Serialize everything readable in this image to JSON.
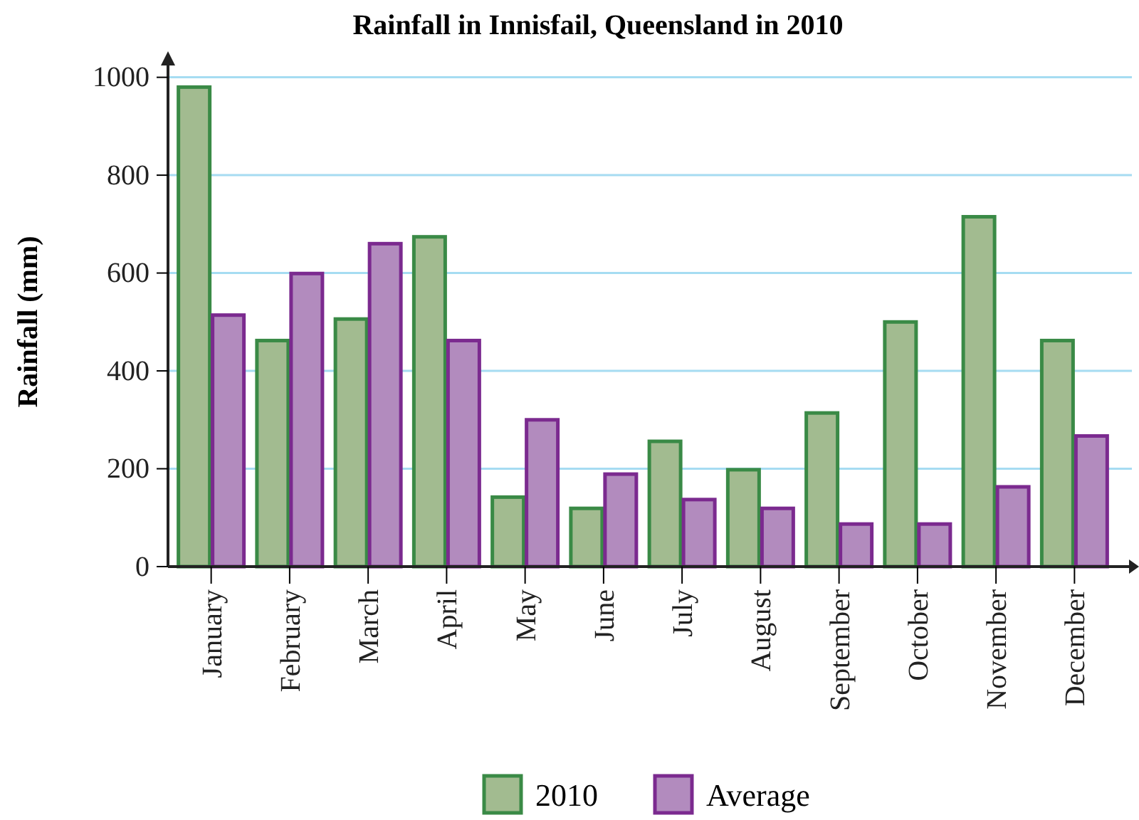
{
  "chart_data": {
    "type": "bar",
    "title": "Rainfall in Innisfail, Queensland in 2010",
    "ylabel": "Rainfall (mm)",
    "categories": [
      "January",
      "February",
      "March",
      "April",
      "May",
      "June",
      "July",
      "August",
      "September",
      "October",
      "November",
      "December"
    ],
    "series": [
      {
        "name": "2010",
        "color": "#a2bb90",
        "values": [
          980,
          462,
          506,
          674,
          142,
          119,
          256,
          198,
          314,
          500,
          715,
          462
        ]
      },
      {
        "name": "Average",
        "color": "#b28bbe",
        "values": [
          514,
          599,
          660,
          462,
          300,
          189,
          137,
          119,
          87,
          87,
          163,
          267
        ]
      }
    ],
    "ylim": [
      0,
      1030
    ],
    "yticks": [
      0,
      200,
      400,
      600,
      800,
      1000
    ],
    "grid": "y",
    "legend": "bottom"
  }
}
